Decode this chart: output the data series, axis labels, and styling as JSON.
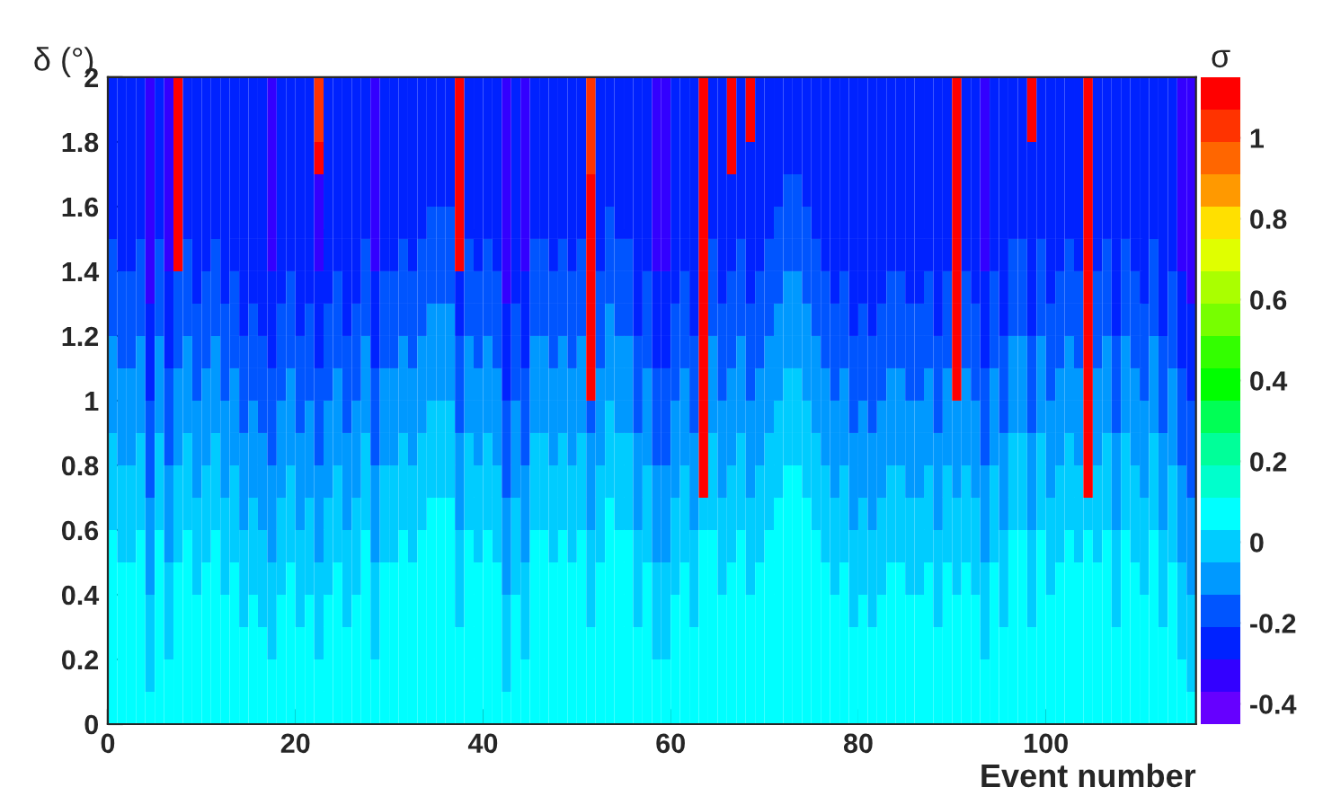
{
  "chart_data": {
    "type": "heatmap",
    "xlabel": "Event number",
    "ylabel": "δ (°)",
    "clabel": "σ",
    "xlim": [
      0,
      116
    ],
    "ylim": [
      0,
      2
    ],
    "xticks": [
      0,
      20,
      40,
      60,
      80,
      100
    ],
    "yticks": [
      0,
      0.2,
      0.4,
      0.6,
      0.8,
      1,
      1.2,
      1.4,
      1.6,
      1.8,
      2
    ],
    "clim": [
      -0.45,
      1.15
    ],
    "cticks": [
      -0.4,
      -0.2,
      0,
      0.2,
      0.4,
      0.6,
      0.8,
      1
    ],
    "colors": [
      "#6600ff",
      "#3300ff",
      "#0022ff",
      "#0055ff",
      "#0099ff",
      "#00ccff",
      "#00ffff",
      "#00ffcc",
      "#00ff99",
      "#00ff55",
      "#00ff00",
      "#33ff00",
      "#77ff00",
      "#aaff00",
      "#e0ff00",
      "#ffe000",
      "#ff9900",
      "#ff6600",
      "#ff3300",
      "#ff0000"
    ],
    "cells": [
      [
        -0.25,
        -0.25,
        -0.25,
        -0.25,
        -0.33,
        -0.25,
        -0.33,
        1.11,
        -0.25,
        -0.25,
        -0.25,
        -0.25,
        -0.25,
        -0.25,
        -0.25,
        -0.25,
        -0.25,
        -0.33,
        -0.25,
        -0.25,
        -0.25,
        -0.25,
        1.03,
        -0.25,
        -0.25,
        -0.25,
        -0.25,
        -0.25,
        -0.33,
        -0.25,
        -0.25,
        -0.25,
        -0.25,
        -0.25,
        -0.25,
        -0.25,
        -0.25,
        1.11,
        -0.25,
        -0.25,
        -0.25,
        -0.25,
        -0.33,
        -0.25,
        -0.33,
        -0.25,
        -0.25,
        -0.25,
        -0.25,
        -0.25,
        -0.25,
        1.03,
        -0.25,
        -0.25,
        -0.25,
        -0.25,
        -0.25,
        -0.25,
        -0.33,
        -0.33,
        -0.25,
        -0.25,
        -0.25,
        1.11,
        -0.25,
        -0.25,
        1.11,
        -0.25,
        1.11,
        -0.25,
        -0.25,
        -0.25,
        -0.25,
        -0.25,
        -0.25,
        -0.25,
        -0.25,
        -0.25,
        -0.25,
        -0.25,
        -0.25,
        -0.25,
        -0.25,
        -0.25,
        -0.25,
        -0.25,
        -0.25,
        -0.25,
        -0.25,
        -0.25,
        1.11,
        -0.25,
        -0.25,
        -0.33,
        -0.25,
        -0.25,
        -0.25,
        -0.25,
        1.11,
        -0.25,
        -0.25,
        -0.25,
        -0.25,
        -0.25,
        1.11,
        -0.25,
        -0.25,
        -0.25,
        -0.25,
        -0.25,
        -0.25,
        -0.25,
        -0.25,
        -0.25,
        -0.33,
        -0.33
      ],
      [
        -0.25,
        -0.25,
        -0.25,
        -0.25,
        -0.33,
        -0.25,
        -0.33,
        1.11,
        -0.25,
        -0.25,
        -0.25,
        -0.25,
        -0.25,
        -0.25,
        -0.25,
        -0.25,
        -0.25,
        -0.33,
        -0.25,
        -0.25,
        -0.25,
        -0.25,
        1.03,
        -0.25,
        -0.25,
        -0.25,
        -0.25,
        -0.25,
        -0.33,
        -0.25,
        -0.25,
        -0.25,
        -0.25,
        -0.25,
        -0.25,
        -0.25,
        -0.25,
        1.11,
        -0.25,
        -0.25,
        -0.25,
        -0.25,
        -0.33,
        -0.25,
        -0.33,
        -0.25,
        -0.25,
        -0.25,
        -0.25,
        -0.25,
        -0.25,
        1.03,
        -0.25,
        -0.25,
        -0.25,
        -0.25,
        -0.25,
        -0.25,
        -0.33,
        -0.33,
        -0.25,
        -0.25,
        -0.25,
        1.11,
        -0.25,
        -0.25,
        1.11,
        -0.25,
        1.11,
        -0.25,
        -0.25,
        -0.25,
        -0.25,
        -0.25,
        -0.25,
        -0.25,
        -0.25,
        -0.25,
        -0.25,
        -0.25,
        -0.25,
        -0.25,
        -0.25,
        -0.25,
        -0.25,
        -0.25,
        -0.25,
        -0.25,
        -0.25,
        -0.25,
        1.11,
        -0.25,
        -0.25,
        -0.33,
        -0.25,
        -0.25,
        -0.25,
        -0.25,
        1.11,
        -0.25,
        -0.25,
        -0.25,
        -0.25,
        -0.25,
        1.11,
        -0.25,
        -0.25,
        -0.25,
        -0.25,
        -0.25,
        -0.25,
        -0.25,
        -0.25,
        -0.25,
        -0.33,
        -0.33
      ],
      [
        -0.25,
        -0.25,
        -0.25,
        -0.25,
        -0.33,
        -0.25,
        -0.33,
        1.11,
        -0.25,
        -0.25,
        -0.25,
        -0.25,
        -0.25,
        -0.25,
        -0.25,
        -0.25,
        -0.25,
        -0.33,
        -0.25,
        -0.25,
        -0.25,
        -0.25,
        1.11,
        -0.25,
        -0.25,
        -0.25,
        -0.25,
        -0.25,
        -0.33,
        -0.25,
        -0.25,
        -0.25,
        -0.25,
        -0.25,
        -0.25,
        -0.25,
        -0.25,
        1.11,
        -0.25,
        -0.25,
        -0.25,
        -0.25,
        -0.33,
        -0.25,
        -0.33,
        -0.25,
        -0.25,
        -0.25,
        -0.25,
        -0.25,
        -0.25,
        1.03,
        -0.25,
        -0.25,
        -0.25,
        -0.25,
        -0.25,
        -0.25,
        -0.33,
        -0.33,
        -0.25,
        -0.25,
        -0.25,
        1.11,
        -0.25,
        -0.25,
        1.11,
        -0.25,
        -0.25,
        -0.25,
        -0.25,
        -0.25,
        -0.25,
        -0.25,
        -0.25,
        -0.25,
        -0.25,
        -0.25,
        -0.25,
        -0.25,
        -0.25,
        -0.25,
        -0.25,
        -0.25,
        -0.25,
        -0.25,
        -0.25,
        -0.25,
        -0.25,
        -0.25,
        1.11,
        -0.25,
        -0.25,
        -0.33,
        -0.25,
        -0.25,
        -0.25,
        -0.25,
        -0.25,
        -0.25,
        -0.25,
        -0.25,
        -0.25,
        -0.25,
        1.11,
        -0.25,
        -0.25,
        -0.25,
        -0.25,
        -0.25,
        -0.25,
        -0.25,
        -0.25,
        -0.25,
        -0.33,
        -0.33
      ],
      [
        -0.25,
        -0.25,
        -0.25,
        -0.25,
        -0.33,
        -0.25,
        -0.33,
        1.11,
        -0.25,
        -0.25,
        -0.25,
        -0.25,
        -0.25,
        -0.25,
        -0.25,
        -0.25,
        -0.25,
        -0.33,
        -0.25,
        -0.25,
        -0.25,
        -0.25,
        -0.33,
        -0.25,
        -0.25,
        -0.25,
        -0.25,
        -0.25,
        -0.33,
        -0.25,
        -0.25,
        -0.25,
        -0.25,
        -0.25,
        -0.25,
        -0.25,
        -0.25,
        1.11,
        -0.25,
        -0.25,
        -0.25,
        -0.25,
        -0.33,
        -0.25,
        -0.33,
        -0.25,
        -0.25,
        -0.25,
        -0.25,
        -0.25,
        -0.25,
        1.11,
        -0.25,
        -0.25,
        -0.25,
        -0.25,
        -0.25,
        -0.25,
        -0.33,
        -0.33,
        -0.25,
        -0.25,
        -0.25,
        1.11,
        -0.25,
        -0.25,
        -0.25,
        -0.25,
        -0.25,
        -0.25,
        -0.25,
        -0.25,
        -0.17,
        -0.17,
        -0.25,
        -0.25,
        -0.25,
        -0.25,
        -0.25,
        -0.25,
        -0.25,
        -0.25,
        -0.25,
        -0.25,
        -0.25,
        -0.25,
        -0.25,
        -0.25,
        -0.25,
        -0.25,
        1.11,
        -0.25,
        -0.25,
        -0.33,
        -0.25,
        -0.25,
        -0.25,
        -0.25,
        -0.25,
        -0.25,
        -0.25,
        -0.25,
        -0.25,
        -0.25,
        1.11,
        -0.25,
        -0.25,
        -0.25,
        -0.25,
        -0.25,
        -0.25,
        -0.25,
        -0.25,
        -0.25,
        -0.33,
        -0.33
      ],
      [
        -0.25,
        -0.25,
        -0.25,
        -0.25,
        -0.33,
        -0.25,
        -0.33,
        1.11,
        -0.25,
        -0.25,
        -0.25,
        -0.25,
        -0.25,
        -0.25,
        -0.25,
        -0.25,
        -0.25,
        -0.33,
        -0.25,
        -0.25,
        -0.25,
        -0.25,
        -0.33,
        -0.25,
        -0.25,
        -0.25,
        -0.25,
        -0.25,
        -0.33,
        -0.25,
        -0.25,
        -0.25,
        -0.25,
        -0.25,
        -0.17,
        -0.17,
        -0.17,
        1.11,
        -0.25,
        -0.25,
        -0.25,
        -0.25,
        -0.33,
        -0.25,
        -0.33,
        -0.25,
        -0.25,
        -0.25,
        -0.25,
        -0.25,
        -0.25,
        1.11,
        -0.25,
        -0.17,
        -0.25,
        -0.25,
        -0.25,
        -0.25,
        -0.33,
        -0.33,
        -0.25,
        -0.25,
        -0.25,
        1.11,
        -0.25,
        -0.25,
        -0.25,
        -0.25,
        -0.25,
        -0.25,
        -0.25,
        -0.17,
        -0.17,
        -0.17,
        -0.17,
        -0.25,
        -0.25,
        -0.25,
        -0.25,
        -0.25,
        -0.25,
        -0.25,
        -0.25,
        -0.25,
        -0.25,
        -0.25,
        -0.25,
        -0.25,
        -0.25,
        -0.25,
        1.11,
        -0.25,
        -0.25,
        -0.33,
        -0.25,
        -0.25,
        -0.25,
        -0.25,
        -0.25,
        -0.25,
        -0.25,
        -0.25,
        -0.25,
        -0.25,
        1.11,
        -0.25,
        -0.25,
        -0.25,
        -0.25,
        -0.25,
        -0.25,
        -0.25,
        -0.25,
        -0.25,
        -0.33,
        -0.33
      ],
      [
        -0.17,
        -0.25,
        -0.25,
        -0.17,
        -0.33,
        -0.17,
        -0.33,
        1.11,
        -0.17,
        -0.25,
        -0.25,
        -0.17,
        -0.25,
        -0.25,
        -0.25,
        -0.25,
        -0.25,
        -0.33,
        -0.25,
        -0.25,
        -0.25,
        -0.25,
        -0.33,
        -0.25,
        -0.25,
        -0.25,
        -0.25,
        -0.17,
        -0.33,
        -0.25,
        -0.25,
        -0.17,
        -0.25,
        -0.17,
        -0.17,
        -0.17,
        -0.17,
        1.11,
        -0.17,
        -0.25,
        -0.17,
        -0.25,
        -0.33,
        -0.25,
        -0.33,
        -0.17,
        -0.17,
        -0.25,
        -0.17,
        -0.25,
        -0.17,
        1.11,
        -0.25,
        -0.17,
        -0.17,
        -0.17,
        -0.25,
        -0.25,
        -0.33,
        -0.33,
        -0.25,
        -0.25,
        -0.25,
        1.11,
        -0.17,
        -0.25,
        -0.25,
        -0.17,
        -0.25,
        -0.25,
        -0.17,
        -0.17,
        -0.17,
        -0.17,
        -0.17,
        -0.17,
        -0.25,
        -0.25,
        -0.25,
        -0.25,
        -0.25,
        -0.25,
        -0.25,
        -0.25,
        -0.25,
        -0.25,
        -0.25,
        -0.25,
        -0.25,
        -0.25,
        1.11,
        -0.25,
        -0.25,
        -0.33,
        -0.25,
        -0.25,
        -0.17,
        -0.17,
        -0.25,
        -0.17,
        -0.25,
        -0.25,
        -0.17,
        -0.25,
        1.11,
        -0.25,
        -0.17,
        -0.25,
        -0.17,
        -0.25,
        -0.25,
        -0.17,
        -0.25,
        -0.25,
        -0.33,
        -0.33
      ],
      [
        -0.17,
        -0.17,
        -0.17,
        -0.17,
        -0.33,
        -0.17,
        -0.25,
        -0.17,
        -0.17,
        -0.25,
        -0.17,
        -0.17,
        -0.25,
        -0.17,
        -0.25,
        -0.25,
        -0.25,
        -0.25,
        -0.25,
        -0.17,
        -0.25,
        -0.25,
        -0.25,
        -0.25,
        -0.17,
        -0.25,
        -0.25,
        -0.17,
        -0.25,
        -0.17,
        -0.17,
        -0.17,
        -0.17,
        -0.17,
        -0.17,
        -0.17,
        -0.17,
        -0.25,
        -0.17,
        -0.17,
        -0.17,
        -0.17,
        -0.33,
        -0.25,
        -0.25,
        -0.17,
        -0.17,
        -0.17,
        -0.17,
        -0.17,
        -0.17,
        1.11,
        -0.17,
        -0.17,
        -0.17,
        -0.17,
        -0.25,
        -0.17,
        -0.25,
        -0.25,
        -0.25,
        -0.17,
        -0.25,
        1.11,
        -0.17,
        -0.25,
        -0.17,
        -0.17,
        -0.25,
        -0.17,
        -0.17,
        -0.17,
        -0.09,
        -0.09,
        -0.17,
        -0.17,
        -0.17,
        -0.25,
        -0.17,
        -0.25,
        -0.25,
        -0.25,
        -0.25,
        -0.17,
        -0.17,
        -0.25,
        -0.25,
        -0.17,
        -0.25,
        -0.17,
        1.11,
        -0.17,
        -0.25,
        -0.25,
        -0.17,
        -0.25,
        -0.17,
        -0.17,
        -0.25,
        -0.17,
        -0.25,
        -0.17,
        -0.17,
        -0.17,
        1.11,
        -0.17,
        -0.17,
        -0.25,
        -0.17,
        -0.17,
        -0.25,
        -0.17,
        -0.25,
        -0.17,
        -0.25,
        -0.33
      ],
      [
        -0.17,
        -0.17,
        -0.17,
        -0.17,
        -0.25,
        -0.17,
        -0.25,
        -0.17,
        -0.17,
        -0.17,
        -0.17,
        -0.17,
        -0.17,
        -0.17,
        -0.25,
        -0.17,
        -0.25,
        -0.25,
        -0.17,
        -0.17,
        -0.25,
        -0.17,
        -0.25,
        -0.17,
        -0.17,
        -0.25,
        -0.17,
        -0.17,
        -0.25,
        -0.17,
        -0.17,
        -0.17,
        -0.17,
        -0.17,
        -0.09,
        -0.09,
        -0.09,
        -0.25,
        -0.17,
        -0.17,
        -0.17,
        -0.17,
        -0.25,
        -0.17,
        -0.25,
        -0.17,
        -0.17,
        -0.17,
        -0.17,
        -0.17,
        -0.17,
        1.11,
        -0.17,
        -0.09,
        -0.17,
        -0.17,
        -0.25,
        -0.17,
        -0.25,
        -0.25,
        -0.17,
        -0.17,
        -0.25,
        1.11,
        -0.17,
        -0.17,
        -0.17,
        -0.17,
        -0.17,
        -0.17,
        -0.17,
        -0.09,
        -0.09,
        -0.09,
        -0.09,
        -0.17,
        -0.17,
        -0.17,
        -0.17,
        -0.25,
        -0.17,
        -0.25,
        -0.17,
        -0.17,
        -0.17,
        -0.17,
        -0.17,
        -0.17,
        -0.25,
        -0.17,
        1.11,
        -0.17,
        -0.17,
        -0.25,
        -0.17,
        -0.25,
        -0.17,
        -0.17,
        -0.25,
        -0.17,
        -0.17,
        -0.17,
        -0.17,
        -0.17,
        1.11,
        -0.17,
        -0.17,
        -0.25,
        -0.17,
        -0.17,
        -0.17,
        -0.17,
        -0.25,
        -0.17,
        -0.25,
        -0.25
      ],
      [
        -0.09,
        -0.17,
        -0.17,
        -0.09,
        -0.25,
        -0.09,
        -0.25,
        -0.17,
        -0.09,
        -0.17,
        -0.17,
        -0.09,
        -0.17,
        -0.17,
        -0.17,
        -0.17,
        -0.17,
        -0.25,
        -0.17,
        -0.17,
        -0.17,
        -0.17,
        -0.25,
        -0.17,
        -0.17,
        -0.17,
        -0.17,
        -0.09,
        -0.25,
        -0.17,
        -0.17,
        -0.09,
        -0.17,
        -0.09,
        -0.09,
        -0.09,
        -0.09,
        -0.17,
        -0.09,
        -0.17,
        -0.09,
        -0.17,
        -0.25,
        -0.17,
        -0.25,
        -0.09,
        -0.09,
        -0.17,
        -0.09,
        -0.17,
        -0.09,
        1.11,
        -0.17,
        -0.09,
        -0.09,
        -0.09,
        -0.17,
        -0.17,
        -0.25,
        -0.25,
        -0.17,
        -0.17,
        -0.17,
        1.11,
        -0.09,
        -0.17,
        -0.17,
        -0.09,
        -0.17,
        -0.17,
        -0.09,
        -0.09,
        -0.09,
        -0.09,
        -0.09,
        -0.09,
        -0.17,
        -0.17,
        -0.17,
        -0.17,
        -0.17,
        -0.17,
        -0.17,
        -0.17,
        -0.17,
        -0.17,
        -0.17,
        -0.17,
        -0.17,
        -0.17,
        1.11,
        -0.17,
        -0.17,
        -0.25,
        -0.17,
        -0.17,
        -0.09,
        -0.09,
        -0.17,
        -0.09,
        -0.17,
        -0.17,
        -0.09,
        -0.17,
        1.11,
        -0.17,
        -0.09,
        -0.17,
        -0.09,
        -0.17,
        -0.17,
        -0.09,
        -0.17,
        -0.17,
        -0.25,
        -0.25
      ],
      [
        -0.09,
        -0.09,
        -0.09,
        -0.09,
        -0.25,
        -0.09,
        -0.17,
        -0.09,
        -0.09,
        -0.17,
        -0.09,
        -0.09,
        -0.17,
        -0.09,
        -0.17,
        -0.17,
        -0.17,
        -0.17,
        -0.17,
        -0.09,
        -0.17,
        -0.17,
        -0.17,
        -0.17,
        -0.09,
        -0.17,
        -0.17,
        -0.09,
        -0.17,
        -0.09,
        -0.09,
        -0.09,
        -0.09,
        -0.09,
        -0.09,
        -0.09,
        -0.09,
        -0.17,
        -0.09,
        -0.09,
        -0.09,
        -0.09,
        -0.25,
        -0.17,
        -0.17,
        -0.09,
        -0.09,
        -0.09,
        -0.09,
        -0.09,
        -0.09,
        1.11,
        -0.09,
        -0.09,
        -0.09,
        -0.09,
        -0.17,
        -0.09,
        -0.17,
        -0.17,
        -0.17,
        -0.09,
        -0.17,
        1.11,
        -0.09,
        -0.17,
        -0.09,
        -0.09,
        -0.17,
        -0.09,
        -0.09,
        -0.09,
        -0.01,
        -0.01,
        -0.09,
        -0.09,
        -0.09,
        -0.17,
        -0.09,
        -0.17,
        -0.17,
        -0.17,
        -0.17,
        -0.09,
        -0.09,
        -0.17,
        -0.17,
        -0.09,
        -0.17,
        -0.09,
        1.11,
        -0.09,
        -0.17,
        -0.17,
        -0.09,
        -0.17,
        -0.09,
        -0.09,
        -0.17,
        -0.09,
        -0.17,
        -0.09,
        -0.09,
        -0.09,
        1.11,
        -0.09,
        -0.09,
        -0.17,
        -0.09,
        -0.09,
        -0.17,
        -0.09,
        -0.17,
        -0.09,
        -0.17,
        -0.25
      ],
      [
        -0.09,
        -0.09,
        -0.09,
        -0.09,
        -0.17,
        -0.09,
        -0.17,
        -0.09,
        -0.09,
        -0.09,
        -0.09,
        -0.09,
        -0.09,
        -0.09,
        -0.17,
        -0.09,
        -0.17,
        -0.17,
        -0.09,
        -0.09,
        -0.17,
        -0.09,
        -0.17,
        -0.09,
        -0.09,
        -0.17,
        -0.09,
        -0.09,
        -0.17,
        -0.09,
        -0.09,
        -0.09,
        -0.09,
        -0.09,
        -0.01,
        -0.01,
        -0.01,
        -0.17,
        -0.09,
        -0.09,
        -0.09,
        -0.09,
        -0.17,
        -0.09,
        -0.17,
        -0.09,
        -0.09,
        -0.09,
        -0.09,
        -0.09,
        -0.09,
        -0.17,
        -0.09,
        -0.01,
        -0.09,
        -0.09,
        -0.17,
        -0.09,
        -0.17,
        -0.17,
        -0.09,
        -0.09,
        -0.17,
        1.11,
        -0.09,
        -0.09,
        -0.09,
        -0.09,
        -0.09,
        -0.09,
        -0.09,
        -0.01,
        -0.01,
        -0.01,
        -0.01,
        -0.09,
        -0.09,
        -0.09,
        -0.09,
        -0.17,
        -0.09,
        -0.17,
        -0.09,
        -0.09,
        -0.09,
        -0.09,
        -0.09,
        -0.09,
        -0.17,
        -0.09,
        -0.09,
        -0.09,
        -0.09,
        -0.17,
        -0.09,
        -0.17,
        -0.09,
        -0.09,
        -0.17,
        -0.09,
        -0.09,
        -0.09,
        -0.09,
        -0.09,
        1.11,
        -0.09,
        -0.09,
        -0.17,
        -0.09,
        -0.09,
        -0.09,
        -0.09,
        -0.17,
        -0.09,
        -0.17,
        -0.17
      ],
      [
        -0.01,
        -0.09,
        -0.09,
        -0.01,
        -0.17,
        -0.01,
        -0.17,
        -0.09,
        -0.01,
        -0.09,
        -0.09,
        -0.01,
        -0.09,
        -0.09,
        -0.09,
        -0.09,
        -0.09,
        -0.17,
        -0.09,
        -0.09,
        -0.09,
        -0.09,
        -0.17,
        -0.09,
        -0.09,
        -0.09,
        -0.09,
        -0.01,
        -0.17,
        -0.09,
        -0.09,
        -0.01,
        -0.09,
        -0.01,
        -0.01,
        -0.01,
        -0.01,
        -0.09,
        -0.01,
        -0.09,
        -0.01,
        -0.09,
        -0.17,
        -0.09,
        -0.17,
        -0.01,
        -0.01,
        -0.09,
        -0.01,
        -0.09,
        -0.01,
        -0.09,
        -0.09,
        -0.01,
        -0.01,
        -0.01,
        -0.09,
        -0.09,
        -0.17,
        -0.17,
        -0.09,
        -0.09,
        -0.09,
        1.11,
        -0.01,
        -0.09,
        -0.09,
        -0.01,
        -0.09,
        -0.09,
        -0.01,
        -0.01,
        -0.01,
        -0.01,
        -0.01,
        -0.01,
        -0.09,
        -0.09,
        -0.09,
        -0.09,
        -0.09,
        -0.09,
        -0.09,
        -0.09,
        -0.09,
        -0.09,
        -0.09,
        -0.09,
        -0.09,
        -0.09,
        -0.09,
        -0.09,
        -0.09,
        -0.17,
        -0.09,
        -0.09,
        -0.01,
        -0.01,
        -0.09,
        -0.01,
        -0.09,
        -0.09,
        -0.01,
        -0.09,
        1.11,
        -0.09,
        -0.01,
        -0.09,
        -0.01,
        -0.09,
        -0.09,
        -0.01,
        -0.09,
        -0.09,
        -0.17,
        -0.17
      ],
      [
        -0.01,
        -0.01,
        -0.01,
        -0.01,
        -0.17,
        -0.01,
        -0.09,
        -0.01,
        -0.01,
        -0.09,
        -0.01,
        -0.01,
        -0.09,
        -0.01,
        -0.09,
        -0.09,
        -0.09,
        -0.09,
        -0.09,
        -0.01,
        -0.09,
        -0.09,
        -0.09,
        -0.09,
        -0.01,
        -0.09,
        -0.09,
        -0.01,
        -0.09,
        -0.01,
        -0.01,
        -0.01,
        -0.01,
        -0.01,
        -0.01,
        -0.01,
        -0.01,
        -0.09,
        -0.01,
        -0.01,
        -0.01,
        -0.01,
        -0.17,
        -0.09,
        -0.09,
        -0.01,
        -0.01,
        -0.01,
        -0.01,
        -0.01,
        -0.01,
        -0.09,
        -0.01,
        -0.01,
        -0.01,
        -0.01,
        -0.09,
        -0.01,
        -0.09,
        -0.09,
        -0.09,
        -0.01,
        -0.09,
        1.11,
        -0.01,
        -0.09,
        -0.01,
        -0.01,
        -0.09,
        -0.01,
        -0.01,
        -0.01,
        0.07,
        0.07,
        -0.01,
        -0.01,
        -0.01,
        -0.09,
        -0.01,
        -0.09,
        -0.09,
        -0.09,
        -0.09,
        -0.01,
        -0.01,
        -0.09,
        -0.09,
        -0.01,
        -0.09,
        -0.01,
        -0.09,
        -0.01,
        -0.09,
        -0.09,
        -0.01,
        -0.09,
        -0.01,
        -0.01,
        -0.09,
        -0.01,
        -0.09,
        -0.01,
        -0.01,
        -0.01,
        1.11,
        -0.01,
        -0.01,
        -0.09,
        -0.01,
        -0.01,
        -0.09,
        -0.01,
        -0.09,
        -0.01,
        -0.09,
        -0.17
      ],
      [
        -0.01,
        -0.01,
        -0.01,
        -0.01,
        -0.09,
        -0.01,
        -0.09,
        -0.01,
        -0.01,
        -0.01,
        -0.01,
        -0.01,
        -0.01,
        -0.01,
        -0.09,
        -0.01,
        -0.09,
        -0.09,
        -0.01,
        -0.01,
        -0.09,
        -0.01,
        -0.09,
        -0.01,
        -0.01,
        -0.09,
        -0.01,
        -0.01,
        -0.09,
        -0.01,
        -0.01,
        -0.01,
        -0.01,
        -0.01,
        0.07,
        0.07,
        0.07,
        -0.09,
        -0.01,
        -0.01,
        -0.01,
        -0.01,
        -0.09,
        -0.01,
        -0.09,
        -0.01,
        -0.01,
        -0.01,
        -0.01,
        -0.01,
        -0.01,
        -0.09,
        -0.01,
        0.07,
        -0.01,
        -0.01,
        -0.09,
        -0.01,
        -0.09,
        -0.09,
        -0.01,
        -0.01,
        -0.09,
        -0.01,
        -0.01,
        -0.01,
        -0.01,
        -0.01,
        -0.01,
        -0.01,
        -0.01,
        0.07,
        0.07,
        0.07,
        0.07,
        -0.01,
        -0.01,
        -0.01,
        -0.01,
        -0.09,
        -0.01,
        -0.09,
        -0.01,
        -0.01,
        -0.01,
        -0.01,
        -0.01,
        -0.01,
        -0.09,
        -0.01,
        -0.01,
        -0.01,
        -0.01,
        -0.09,
        -0.01,
        -0.09,
        -0.01,
        -0.01,
        -0.09,
        -0.01,
        -0.01,
        -0.01,
        -0.01,
        -0.01,
        -0.01,
        -0.01,
        -0.01,
        -0.09,
        -0.01,
        -0.01,
        -0.01,
        -0.01,
        -0.09,
        -0.01,
        -0.09,
        -0.09
      ],
      [
        0.07,
        -0.01,
        -0.01,
        0.07,
        -0.09,
        0.07,
        -0.09,
        -0.01,
        0.07,
        -0.01,
        -0.01,
        0.07,
        -0.01,
        -0.01,
        -0.01,
        -0.01,
        -0.01,
        -0.09,
        -0.01,
        -0.01,
        -0.01,
        -0.01,
        -0.09,
        -0.01,
        -0.01,
        -0.01,
        -0.01,
        0.07,
        -0.09,
        -0.01,
        -0.01,
        0.07,
        -0.01,
        0.07,
        0.07,
        0.07,
        0.07,
        -0.01,
        0.07,
        -0.01,
        0.07,
        -0.01,
        -0.09,
        -0.01,
        -0.09,
        0.07,
        0.07,
        -0.01,
        0.07,
        -0.01,
        0.07,
        -0.01,
        -0.01,
        0.07,
        0.07,
        0.07,
        -0.01,
        -0.01,
        -0.09,
        -0.09,
        -0.01,
        -0.01,
        -0.01,
        0.07,
        0.07,
        -0.01,
        -0.01,
        0.07,
        -0.01,
        -0.01,
        0.07,
        0.07,
        0.07,
        0.07,
        0.07,
        0.07,
        -0.01,
        -0.01,
        -0.01,
        -0.01,
        -0.01,
        -0.01,
        -0.01,
        -0.01,
        -0.01,
        -0.01,
        -0.01,
        -0.01,
        -0.01,
        -0.01,
        -0.01,
        -0.01,
        -0.01,
        -0.09,
        -0.01,
        -0.01,
        0.07,
        0.07,
        -0.01,
        0.07,
        -0.01,
        -0.01,
        0.07,
        -0.01,
        0.07,
        -0.01,
        0.07,
        -0.01,
        0.07,
        -0.01,
        -0.01,
        0.07,
        -0.01,
        -0.01,
        -0.09,
        -0.09
      ],
      [
        0.07,
        0.07,
        0.07,
        0.07,
        -0.09,
        0.07,
        -0.01,
        0.07,
        0.07,
        -0.01,
        0.07,
        0.07,
        -0.01,
        0.07,
        -0.01,
        -0.01,
        -0.01,
        -0.01,
        -0.01,
        0.07,
        -0.01,
        -0.01,
        -0.01,
        -0.01,
        0.07,
        -0.01,
        -0.01,
        0.07,
        -0.01,
        0.07,
        0.07,
        0.07,
        0.07,
        0.07,
        0.07,
        0.07,
        0.07,
        -0.01,
        0.07,
        0.07,
        0.07,
        0.07,
        -0.09,
        -0.01,
        -0.01,
        0.07,
        0.07,
        0.07,
        0.07,
        0.07,
        0.07,
        -0.01,
        0.07,
        0.07,
        0.07,
        0.07,
        -0.01,
        0.07,
        -0.01,
        -0.01,
        -0.01,
        0.07,
        -0.01,
        0.07,
        0.07,
        -0.01,
        0.07,
        0.07,
        -0.01,
        0.07,
        0.07,
        0.07,
        0.07,
        0.07,
        0.07,
        0.07,
        0.07,
        -0.01,
        0.07,
        -0.01,
        -0.01,
        -0.01,
        -0.01,
        0.07,
        0.07,
        -0.01,
        -0.01,
        0.07,
        -0.01,
        0.07,
        -0.01,
        0.07,
        -0.01,
        -0.01,
        0.07,
        -0.01,
        0.07,
        0.07,
        -0.01,
        0.07,
        -0.01,
        0.07,
        0.07,
        0.07,
        0.07,
        0.07,
        0.07,
        -0.01,
        0.07,
        0.07,
        -0.01,
        0.07,
        -0.01,
        0.07,
        -0.01,
        -0.09
      ],
      [
        0.07,
        0.07,
        0.07,
        0.07,
        -0.01,
        0.07,
        -0.01,
        0.07,
        0.07,
        0.07,
        0.07,
        0.07,
        0.07,
        0.07,
        -0.01,
        0.07,
        -0.01,
        -0.01,
        0.07,
        0.07,
        -0.01,
        0.07,
        -0.01,
        0.07,
        0.07,
        -0.01,
        0.07,
        0.07,
        -0.01,
        0.07,
        0.07,
        0.07,
        0.07,
        0.07,
        0.07,
        0.07,
        0.07,
        -0.01,
        0.07,
        0.07,
        0.07,
        0.07,
        -0.01,
        0.07,
        -0.01,
        0.07,
        0.07,
        0.07,
        0.07,
        0.07,
        0.07,
        -0.01,
        0.07,
        0.07,
        0.07,
        0.07,
        -0.01,
        0.07,
        -0.01,
        -0.01,
        0.07,
        0.07,
        -0.01,
        0.07,
        0.07,
        0.07,
        0.07,
        0.07,
        0.07,
        0.07,
        0.07,
        0.07,
        0.07,
        0.07,
        0.07,
        0.07,
        0.07,
        0.07,
        0.07,
        -0.01,
        0.07,
        -0.01,
        0.07,
        0.07,
        0.07,
        0.07,
        0.07,
        0.07,
        -0.01,
        0.07,
        0.07,
        0.07,
        0.07,
        -0.01,
        0.07,
        -0.01,
        0.07,
        0.07,
        -0.01,
        0.07,
        0.07,
        0.07,
        0.07,
        0.07,
        0.07,
        0.07,
        0.07,
        -0.01,
        0.07,
        0.07,
        0.07,
        0.07,
        -0.01,
        0.07,
        -0.01,
        -0.01
      ],
      [
        0.07,
        0.07,
        0.07,
        0.07,
        -0.01,
        0.07,
        -0.01,
        0.07,
        0.07,
        0.07,
        0.07,
        0.07,
        0.07,
        0.07,
        0.07,
        0.07,
        0.07,
        -0.01,
        0.07,
        0.07,
        0.07,
        0.07,
        -0.01,
        0.07,
        0.07,
        0.07,
        0.07,
        0.07,
        -0.01,
        0.07,
        0.07,
        0.07,
        0.07,
        0.07,
        0.07,
        0.07,
        0.07,
        0.07,
        0.07,
        0.07,
        0.07,
        0.07,
        -0.01,
        0.07,
        -0.01,
        0.07,
        0.07,
        0.07,
        0.07,
        0.07,
        0.07,
        0.07,
        0.07,
        0.07,
        0.07,
        0.07,
        0.07,
        0.07,
        -0.01,
        -0.01,
        0.07,
        0.07,
        0.07,
        0.07,
        0.07,
        0.07,
        0.07,
        0.07,
        0.07,
        0.07,
        0.07,
        0.07,
        0.07,
        0.07,
        0.07,
        0.07,
        0.07,
        0.07,
        0.07,
        0.07,
        0.07,
        0.07,
        0.07,
        0.07,
        0.07,
        0.07,
        0.07,
        0.07,
        0.07,
        0.07,
        0.07,
        0.07,
        0.07,
        -0.01,
        0.07,
        0.07,
        0.07,
        0.07,
        0.07,
        0.07,
        0.07,
        0.07,
        0.07,
        0.07,
        0.07,
        0.07,
        0.07,
        0.07,
        0.07,
        0.07,
        0.07,
        0.07,
        0.07,
        0.07,
        -0.01,
        -0.01
      ],
      [
        0.07,
        0.07,
        0.07,
        0.07,
        -0.01,
        0.07,
        0.07,
        0.07,
        0.07,
        0.07,
        0.07,
        0.07,
        0.07,
        0.07,
        0.07,
        0.07,
        0.07,
        0.07,
        0.07,
        0.07,
        0.07,
        0.07,
        0.07,
        0.07,
        0.07,
        0.07,
        0.07,
        0.07,
        0.07,
        0.07,
        0.07,
        0.07,
        0.07,
        0.07,
        0.07,
        0.07,
        0.07,
        0.07,
        0.07,
        0.07,
        0.07,
        0.07,
        -0.01,
        0.07,
        0.07,
        0.07,
        0.07,
        0.07,
        0.07,
        0.07,
        0.07,
        0.07,
        0.07,
        0.07,
        0.07,
        0.07,
        0.07,
        0.07,
        0.07,
        0.07,
        0.07,
        0.07,
        0.07,
        0.07,
        0.07,
        0.07,
        0.07,
        0.07,
        0.07,
        0.07,
        0.07,
        0.07,
        0.07,
        0.07,
        0.07,
        0.07,
        0.07,
        0.07,
        0.07,
        0.07,
        0.07,
        0.07,
        0.07,
        0.07,
        0.07,
        0.07,
        0.07,
        0.07,
        0.07,
        0.07,
        0.07,
        0.07,
        0.07,
        0.07,
        0.07,
        0.07,
        0.07,
        0.07,
        0.07,
        0.07,
        0.07,
        0.07,
        0.07,
        0.07,
        0.07,
        0.07,
        0.07,
        0.07,
        0.07,
        0.07,
        0.07,
        0.07,
        0.07,
        0.07,
        0.07,
        -0.01
      ],
      [
        0.07,
        0.07,
        0.07,
        0.07,
        0.07,
        0.07,
        0.07,
        0.07,
        0.07,
        0.07,
        0.07,
        0.07,
        0.07,
        0.07,
        0.07,
        0.07,
        0.07,
        0.07,
        0.07,
        0.07,
        0.07,
        0.07,
        0.07,
        0.07,
        0.07,
        0.07,
        0.07,
        0.07,
        0.07,
        0.07,
        0.07,
        0.07,
        0.07,
        0.07,
        0.07,
        0.07,
        0.07,
        0.07,
        0.07,
        0.07,
        0.07,
        0.07,
        0.07,
        0.07,
        0.07,
        0.07,
        0.07,
        0.07,
        0.07,
        0.07,
        0.07,
        0.07,
        0.07,
        0.07,
        0.07,
        0.07,
        0.07,
        0.07,
        0.07,
        0.07,
        0.07,
        0.07,
        0.07,
        0.07,
        0.07,
        0.07,
        0.07,
        0.07,
        0.07,
        0.07,
        0.07,
        0.07,
        0.07,
        0.07,
        0.07,
        0.07,
        0.07,
        0.07,
        0.07,
        0.07,
        0.07,
        0.07,
        0.07,
        0.07,
        0.07,
        0.07,
        0.07,
        0.07,
        0.07,
        0.07,
        0.07,
        0.07,
        0.07,
        0.07,
        0.07,
        0.07,
        0.07,
        0.07,
        0.07,
        0.07,
        0.07,
        0.07,
        0.07,
        0.07,
        0.07,
        0.07,
        0.07,
        0.07,
        0.07,
        0.07,
        0.07,
        0.07,
        0.07,
        0.07,
        0.07,
        0.07
      ]
    ]
  }
}
